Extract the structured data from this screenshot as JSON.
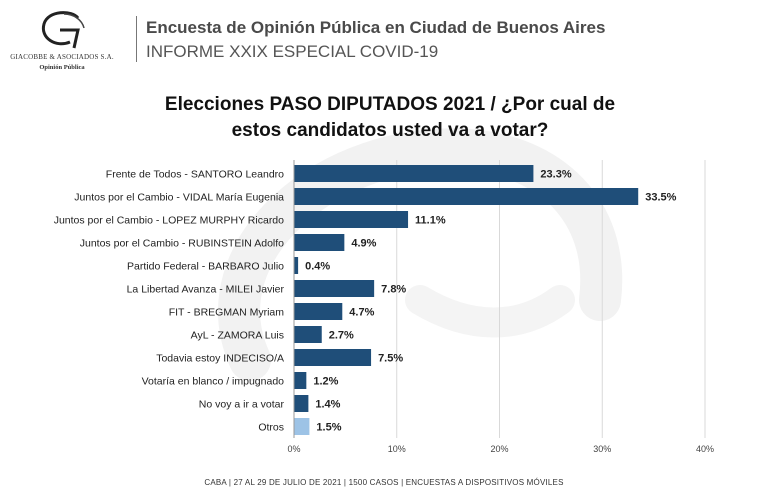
{
  "header": {
    "logo_name": "GIACOBBE & ASOCIADOS S.A.",
    "logo_sub": "Opinión Pública",
    "title": "Encuesta de Opinión Pública en Ciudad de Buenos Aires",
    "subtitle": "INFORME XXIX ESPECIAL COVID-19"
  },
  "footer": "CABA | 27 AL 29 DE JULIO DE 2021 | 1500 CASOS | ENCUESTAS A DISPOSITIVOS MÓVILES",
  "colors": {
    "bar": "#1f4e79",
    "bar_highlight": "#9dc3e6",
    "grid": "#d9d9d9",
    "text": "#222222"
  },
  "chart_data": {
    "type": "bar",
    "orientation": "horizontal",
    "title_lines": [
      "Elecciones PASO DIPUTADOS 2021 / ¿Por cual de",
      "estos candidatos usted va a votar?"
    ],
    "categories": [
      "Frente de Todos - SANTORO Leandro",
      "Juntos por el Cambio - VIDAL María Eugenia",
      "Juntos por el Cambio - LOPEZ MURPHY Ricardo",
      "Juntos por el Cambio - RUBINSTEIN Adolfo",
      "Partido Federal - BARBARO Julio",
      "La Libertad Avanza - MILEI Javier",
      "FIT - BREGMAN Myriam",
      "AyL - ZAMORA Luis",
      "Todavia estoy INDECISO/A",
      "Votaría en blanco / impugnado",
      "No voy a ir a votar",
      "Otros"
    ],
    "values": [
      23.3,
      33.5,
      11.1,
      4.9,
      0.4,
      7.8,
      4.7,
      2.7,
      7.5,
      1.2,
      1.4,
      1.5
    ],
    "value_labels": [
      "23.3%",
      "33.5%",
      "11.1%",
      "4.9%",
      "0.4%",
      "7.8%",
      "4.7%",
      "2.7%",
      "7.5%",
      "1.2%",
      "1.4%",
      "1.5%"
    ],
    "highlight_index": 11,
    "xlim": [
      0,
      40
    ],
    "xticks": [
      0,
      10,
      20,
      30,
      40
    ],
    "xtick_labels": [
      "0%",
      "10%",
      "20%",
      "30%",
      "40%"
    ],
    "grid": true,
    "legend": "none"
  }
}
